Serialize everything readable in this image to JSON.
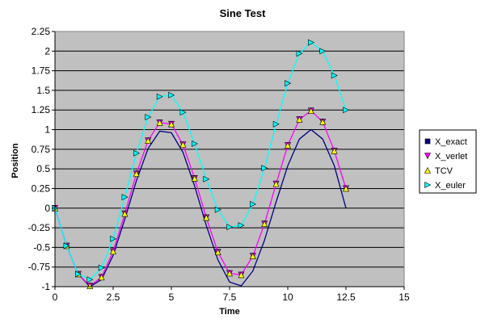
{
  "chart_data": {
    "type": "line",
    "title": "Sine Test",
    "xlabel": "Time",
    "ylabel": "Position",
    "xlim": [
      0,
      15
    ],
    "ylim": [
      -1,
      2.25
    ],
    "xticks": [
      0,
      2.5,
      5,
      7.5,
      10,
      12.5,
      15
    ],
    "yticks": [
      -1,
      -0.75,
      -0.5,
      -0.25,
      0,
      0.25,
      0.5,
      0.75,
      1,
      1.25,
      1.5,
      1.75,
      2,
      2.25
    ],
    "xtick_labels": [
      "0",
      "2.5",
      "5",
      "7.5",
      "10",
      "12.5",
      "15"
    ],
    "ytick_labels": [
      "-1",
      "-0.75",
      "-0.5",
      "-0.25",
      "0",
      "0.25",
      "0.5",
      "0.75",
      "1",
      "1.25",
      "1.5",
      "1.75",
      "2",
      "2.25"
    ],
    "grid": "horizontal",
    "plot_background": "#c0c0c0",
    "legend_position": "right",
    "series": [
      {
        "name": "X_exact",
        "color": "#000080",
        "marker": "square",
        "show_markers": false,
        "show_line": true,
        "x": [
          0,
          0.5,
          1,
          1.5,
          2,
          2.5,
          3,
          3.5,
          4,
          4.5,
          5,
          5.5,
          6,
          6.5,
          7,
          7.5,
          8,
          8.5,
          9,
          9.5,
          10,
          10.5,
          11,
          11.5,
          12,
          12.5
        ],
        "y": [
          0,
          -0.48,
          -0.84,
          -1.0,
          -0.91,
          -0.6,
          -0.14,
          0.35,
          0.76,
          0.98,
          0.96,
          0.71,
          0.28,
          -0.22,
          -0.66,
          -0.94,
          -0.99,
          -0.8,
          -0.41,
          0.08,
          0.54,
          0.88,
          1.0,
          0.88,
          0.54,
          0.0
        ]
      },
      {
        "name": "X_verlet",
        "color": "#ff00ff",
        "marker": "triangle-down",
        "show_markers": true,
        "show_line": true,
        "x": [
          0,
          0.5,
          1,
          1.5,
          2,
          2.5,
          3,
          3.5,
          4,
          4.5,
          5,
          5.5,
          6,
          6.5,
          7,
          7.5,
          8,
          8.5,
          9,
          9.5,
          10,
          10.5,
          11,
          11.5,
          12,
          12.5
        ],
        "y": [
          0,
          -0.48,
          -0.84,
          -0.99,
          -0.88,
          -0.55,
          -0.07,
          0.44,
          0.86,
          1.09,
          1.07,
          0.81,
          0.38,
          -0.12,
          -0.56,
          -0.83,
          -0.85,
          -0.61,
          -0.2,
          0.31,
          0.8,
          1.13,
          1.24,
          1.1,
          0.73,
          0.25
        ]
      },
      {
        "name": "TCV",
        "color": "#ffff00",
        "marker": "triangle-up",
        "show_markers": true,
        "show_line": false,
        "x": [
          0,
          0.5,
          1,
          1.5,
          2,
          2.5,
          3,
          3.5,
          4,
          4.5,
          5,
          5.5,
          6,
          6.5,
          7,
          7.5,
          8,
          8.5,
          9,
          9.5,
          10,
          10.5,
          11,
          11.5,
          12,
          12.5
        ],
        "y": [
          0,
          -0.48,
          -0.84,
          -0.99,
          -0.88,
          -0.55,
          -0.07,
          0.44,
          0.86,
          1.09,
          1.07,
          0.81,
          0.38,
          -0.12,
          -0.56,
          -0.83,
          -0.85,
          -0.61,
          -0.2,
          0.31,
          0.8,
          1.13,
          1.24,
          1.1,
          0.73,
          0.25
        ]
      },
      {
        "name": "X_euler",
        "color": "#00ffff",
        "marker": "triangle-right",
        "show_markers": true,
        "show_line": true,
        "x": [
          0,
          0.5,
          1,
          1.5,
          2,
          2.5,
          3,
          3.5,
          4,
          4.5,
          5,
          5.5,
          6,
          6.5,
          7,
          7.5,
          8,
          8.5,
          9,
          9.5,
          10,
          10.5,
          11,
          11.5,
          12,
          12.5
        ],
        "y": [
          0,
          -0.48,
          -0.84,
          -0.91,
          -0.76,
          -0.39,
          0.14,
          0.7,
          1.16,
          1.42,
          1.44,
          1.22,
          0.82,
          0.37,
          -0.02,
          -0.24,
          -0.22,
          0.05,
          0.51,
          1.07,
          1.59,
          1.97,
          2.11,
          2.0,
          1.69,
          1.25
        ]
      }
    ]
  }
}
